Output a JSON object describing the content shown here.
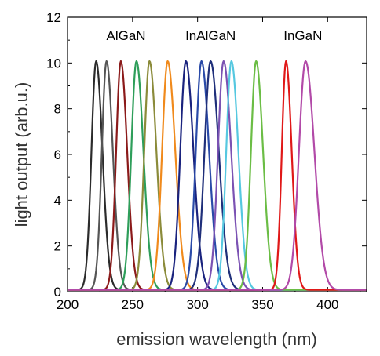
{
  "chart_data": {
    "type": "line",
    "xlabel": "emission wavelength (nm)",
    "ylabel": "light output  (arb.u.)",
    "xlim": [
      200,
      430
    ],
    "ylim": [
      0,
      12
    ],
    "xticks": [
      "200",
      "250",
      "300",
      "350",
      "400"
    ],
    "yticks": [
      "0",
      "2",
      "4",
      "6",
      "8",
      "10",
      "12"
    ],
    "grid": false,
    "annotations": [
      {
        "text": "AlGaN",
        "x": 245,
        "y": 11.0
      },
      {
        "text": "InAlGaN",
        "x": 310,
        "y": 11.0
      },
      {
        "text": "InGaN",
        "x": 381,
        "y": 11.0
      }
    ],
    "series": [
      {
        "peak_nm": 222,
        "peak": 10,
        "fwhm_nm": 10,
        "color": "#2b2b2b"
      },
      {
        "peak_nm": 230,
        "peak": 10,
        "fwhm_nm": 10,
        "color": "#555555"
      },
      {
        "peak_nm": 241,
        "peak": 10,
        "fwhm_nm": 10,
        "color": "#8b1a1a"
      },
      {
        "peak_nm": 253,
        "peak": 10,
        "fwhm_nm": 11,
        "color": "#2e9e5a"
      },
      {
        "peak_nm": 263,
        "peak": 10,
        "fwhm_nm": 11,
        "color": "#8b8b3a"
      },
      {
        "peak_nm": 277,
        "peak": 10,
        "fwhm_nm": 12,
        "color": "#f08a1c"
      },
      {
        "peak_nm": 291,
        "peak": 10,
        "fwhm_nm": 12,
        "color": "#1a237e"
      },
      {
        "peak_nm": 303,
        "peak": 10,
        "fwhm_nm": 12,
        "color": "#2a4aa8"
      },
      {
        "peak_nm": 310,
        "peak": 10,
        "fwhm_nm": 13,
        "color": "#1f2f7a"
      },
      {
        "peak_nm": 320,
        "peak": 10,
        "fwhm_nm": 12,
        "color": "#7b52b3"
      },
      {
        "peak_nm": 326,
        "peak": 10,
        "fwhm_nm": 11,
        "color": "#56c8e0"
      },
      {
        "peak_nm": 345,
        "peak": 10,
        "fwhm_nm": 11,
        "color": "#6bbd45"
      },
      {
        "peak_nm": 368,
        "peak": 10,
        "fwhm_nm": 9,
        "color": "#e01818"
      },
      {
        "peak_nm": 383,
        "peak": 10,
        "fwhm_nm": 14,
        "color": "#b24aa8"
      }
    ]
  }
}
